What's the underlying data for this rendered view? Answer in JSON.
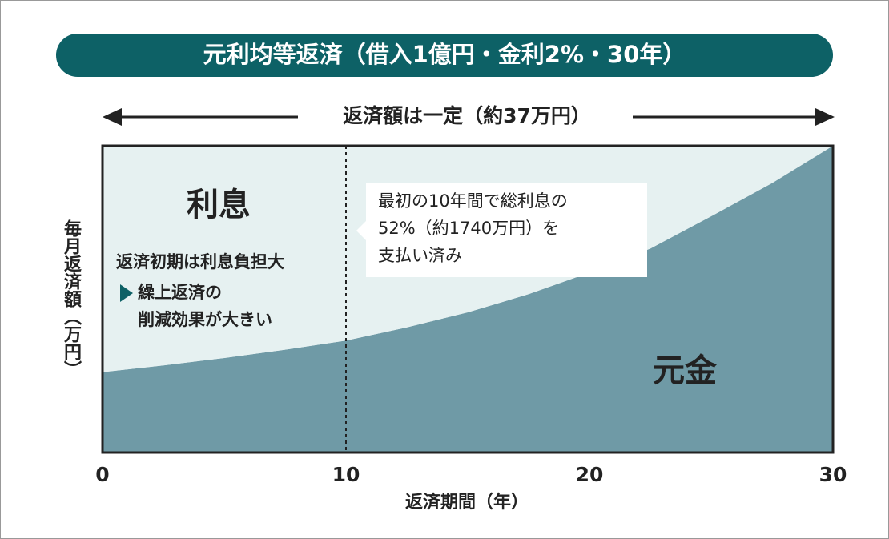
{
  "chart_data": {
    "type": "area",
    "title": "元利均等返済（借入1億円・金利2%・30年）",
    "subtitle": "返済額は一定（約37万円）",
    "x_label": "返済期間（年）",
    "y_label": "毎月返済額（万円）",
    "x": [
      0,
      2.5,
      5,
      7.5,
      10,
      12.5,
      15,
      17.5,
      20,
      22.5,
      25,
      27.5,
      30
    ],
    "series": [
      {
        "name": "元金",
        "color": "#6f9aa6",
        "values": [
          9.7,
          10.5,
          11.4,
          12.4,
          13.5,
          15.1,
          16.9,
          19.1,
          21.7,
          24.6,
          28.5,
          32.5,
          37
        ]
      },
      {
        "name": "利息",
        "color": "#e6f1f1",
        "values": [
          27.3,
          26.5,
          25.6,
          24.6,
          23.5,
          21.9,
          20.1,
          17.9,
          15.3,
          12.4,
          8.5,
          4.5,
          0
        ]
      }
    ],
    "stacked": true,
    "xlim": [
      0,
      30
    ],
    "ylim": [
      0,
      37
    ],
    "xticks": [
      0,
      10,
      20,
      30
    ],
    "marker_x": 10,
    "notes": [
      "返済初期は利息負担大",
      "繰上返済の",
      "削減効果が大きい"
    ],
    "callout": [
      "最初の10年間で総利息の",
      "52%（約1740万円）を",
      "支払い済み"
    ]
  }
}
